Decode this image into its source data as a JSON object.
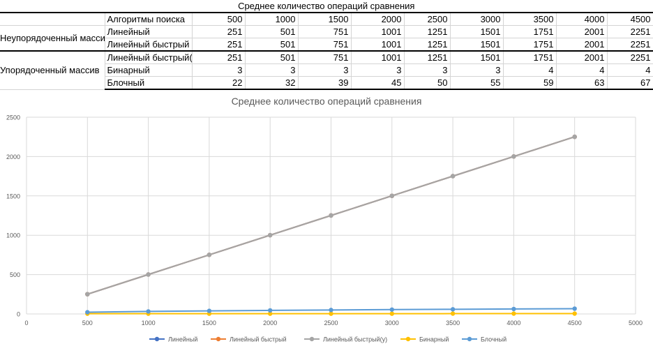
{
  "table": {
    "title": "Среднее количество операций сравнения",
    "header_label": "Алгоритмы поиска",
    "sizes": [
      "500",
      "1000",
      "1500",
      "2000",
      "2500",
      "3000",
      "3500",
      "4000",
      "4500"
    ],
    "groups": [
      {
        "label": "Неупорядоченный массив",
        "rows": [
          {
            "name": "Линейный",
            "values": [
              "251",
              "501",
              "751",
              "1001",
              "1251",
              "1501",
              "1751",
              "2001",
              "2251"
            ]
          },
          {
            "name": "Линейный быстрый",
            "values": [
              "251",
              "501",
              "751",
              "1001",
              "1251",
              "1501",
              "1751",
              "2001",
              "2251"
            ]
          }
        ]
      },
      {
        "label": "Упорядоченный массив",
        "rows": [
          {
            "name": "Линейный быстрый(у)",
            "values": [
              "251",
              "501",
              "751",
              "1001",
              "1251",
              "1501",
              "1751",
              "2001",
              "2251"
            ]
          },
          {
            "name": "Бинарный",
            "values": [
              "3",
              "3",
              "3",
              "3",
              "3",
              "3",
              "4",
              "4",
              "4"
            ]
          },
          {
            "name": "Блочный",
            "values": [
              "22",
              "32",
              "39",
              "45",
              "50",
              "55",
              "59",
              "63",
              "67"
            ]
          }
        ]
      }
    ]
  },
  "chart_data": {
    "type": "scatter",
    "title": "Среднее количество операций сравнения",
    "xlabel": "",
    "ylabel": "",
    "xlim": [
      0,
      5000
    ],
    "ylim": [
      0,
      2500
    ],
    "xticks": [
      0,
      500,
      1000,
      1500,
      2000,
      2500,
      3000,
      3500,
      4000,
      4500,
      5000
    ],
    "yticks": [
      0,
      500,
      1000,
      1500,
      2000,
      2500
    ],
    "grid": true,
    "legend_position": "bottom",
    "x": [
      500,
      1000,
      1500,
      2000,
      2500,
      3000,
      3500,
      4000,
      4500
    ],
    "series": [
      {
        "name": "Линейный",
        "color": "#4472c4",
        "values": [
          251,
          501,
          751,
          1001,
          1251,
          1501,
          1751,
          2001,
          2251
        ]
      },
      {
        "name": "Линейный быстрый",
        "color": "#ed7d31",
        "values": [
          251,
          501,
          751,
          1001,
          1251,
          1501,
          1751,
          2001,
          2251
        ]
      },
      {
        "name": "Линейный быстрый(у)",
        "color": "#a5a5a5",
        "values": [
          251,
          501,
          751,
          1001,
          1251,
          1501,
          1751,
          2001,
          2251
        ]
      },
      {
        "name": "Бинарный",
        "color": "#ffc000",
        "values": [
          3,
          3,
          3,
          3,
          3,
          3,
          4,
          4,
          4
        ]
      },
      {
        "name": "Блочный",
        "color": "#5b9bd5",
        "values": [
          22,
          32,
          39,
          45,
          50,
          55,
          59,
          63,
          67
        ]
      }
    ]
  }
}
